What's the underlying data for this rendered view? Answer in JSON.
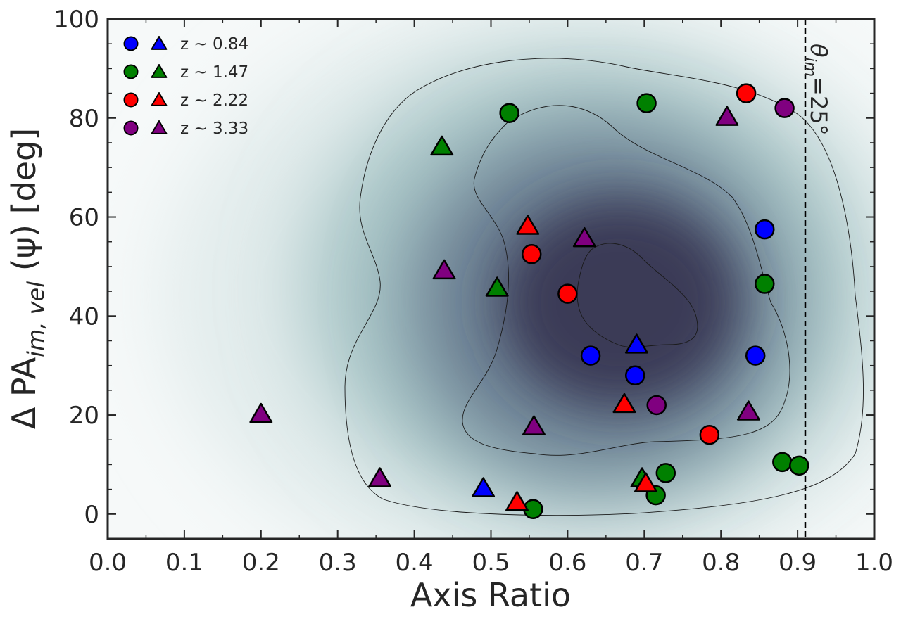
{
  "chart_data": {
    "type": "scatter",
    "xlabel": "Axis Ratio",
    "ylabel": "Δ PA",
    "ylabel_sub": "im, vel",
    "ylabel_tail": " (ψ) [deg]",
    "xlim": [
      0.0,
      1.0
    ],
    "ylim": [
      -5,
      100
    ],
    "x_ticks": [
      "0.0",
      "0.1",
      "0.2",
      "0.3",
      "0.4",
      "0.5",
      "0.6",
      "0.7",
      "0.8",
      "0.9",
      "1.0"
    ],
    "y_ticks": [
      "0",
      "20",
      "40",
      "60",
      "80",
      "100"
    ],
    "background": "kernel-density estimate (gray-teal colormap) with 3 contour levels",
    "vertical_line": {
      "x": 0.91,
      "style": "dashed"
    },
    "annotation": {
      "theta": "θ",
      "sub": "im",
      "text": "=25°"
    },
    "colors": {
      "blue": "#0000ff",
      "green": "#008000",
      "red": "#ff0000",
      "purple": "#800080",
      "density_high": "#2e2d48",
      "density_mid": "#8fa8b0",
      "density_low": "#eef3f3"
    },
    "series": [
      {
        "name": "z ∼ 0.84",
        "color": "#0000ff",
        "circles": [
          [
            0.63,
            32
          ],
          [
            0.688,
            28
          ],
          [
            0.845,
            32
          ],
          [
            0.857,
            57.5
          ]
        ],
        "triangles": [
          [
            0.69,
            34
          ],
          [
            0.49,
            5
          ]
        ]
      },
      {
        "name": "z ∼ 1.47",
        "color": "#008000",
        "circles": [
          [
            0.524,
            81
          ],
          [
            0.703,
            83
          ],
          [
            0.857,
            46.5
          ],
          [
            0.88,
            10.5
          ],
          [
            0.902,
            9.8
          ],
          [
            0.728,
            8.3
          ],
          [
            0.715,
            3.8
          ],
          [
            0.555,
            1
          ]
        ],
        "triangles": [
          [
            0.436,
            74
          ],
          [
            0.508,
            45.5
          ],
          [
            0.697,
            7
          ]
        ]
      },
      {
        "name": "z ∼ 2.22",
        "color": "#ff0000",
        "circles": [
          [
            0.833,
            85
          ],
          [
            0.553,
            52.5
          ],
          [
            0.6,
            44.5
          ],
          [
            0.785,
            16
          ]
        ],
        "triangles": [
          [
            0.548,
            58
          ],
          [
            0.674,
            22
          ],
          [
            0.702,
            6
          ],
          [
            0.534,
            2.2
          ]
        ]
      },
      {
        "name": "z ∼ 3.33",
        "color": "#800080",
        "circles": [
          [
            0.883,
            82
          ],
          [
            0.716,
            22
          ]
        ],
        "triangles": [
          [
            0.808,
            80
          ],
          [
            0.622,
            55.5
          ],
          [
            0.439,
            49
          ],
          [
            0.556,
            17.5
          ],
          [
            0.836,
            20.5
          ],
          [
            0.2,
            20
          ],
          [
            0.355,
            7
          ]
        ]
      }
    ]
  }
}
